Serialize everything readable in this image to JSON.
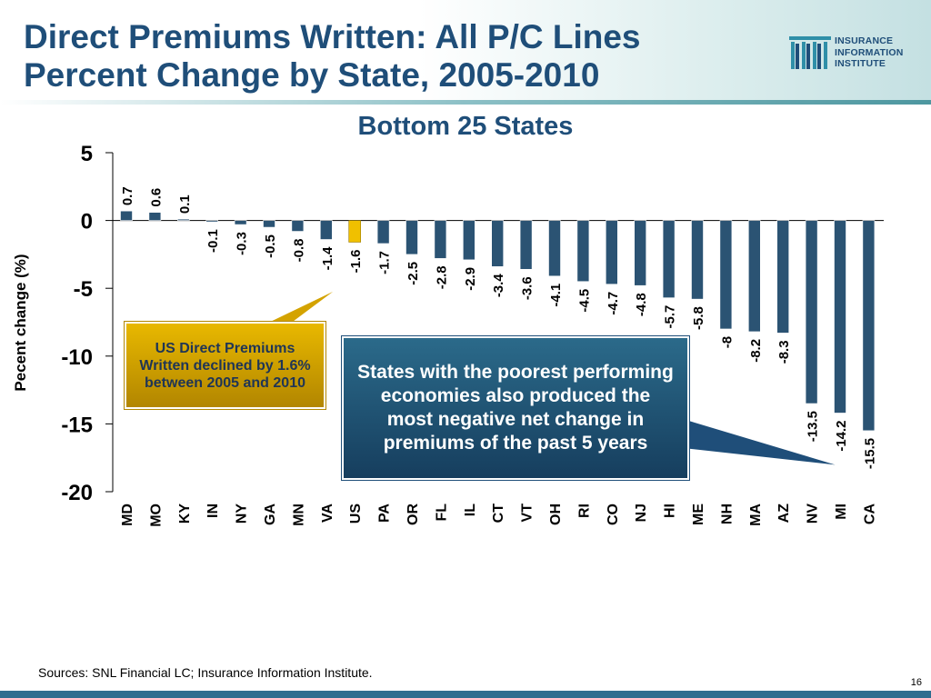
{
  "slide": {
    "title_line1": "Direct Premiums Written: All P/C Lines",
    "title_line2": "Percent Change by State, 2005-2010",
    "subtitle": "Bottom 25 States",
    "sources": "Sources:  SNL Financial LC; Insurance Information Institute.",
    "page_number": "16"
  },
  "logo": {
    "line1": "INSURANCE",
    "line2": "INFORMATION",
    "line3": "INSTITUTE"
  },
  "callouts": {
    "us_note": "US Direct Premiums Written declined by 1.6% between 2005 and 2010",
    "states_note": "States with the poorest performing economies also produced the most negative net change in premiums of the past 5 years"
  },
  "colors": {
    "title": "#1f4e79",
    "bar": "#2b5373",
    "highlight_bar": "#f0c000",
    "gold_callout": "#d4a300",
    "blue_callout": "#1f4e79"
  },
  "chart_data": {
    "type": "bar",
    "title": "Bottom 25 States",
    "xlabel": "",
    "ylabel": "Pecent change (%)",
    "ylim": [
      -20,
      5
    ],
    "yticks": [
      5,
      0,
      -5,
      -10,
      -15,
      -20
    ],
    "grid": false,
    "highlight": "US",
    "categories": [
      "MD",
      "MO",
      "KY",
      "IN",
      "NY",
      "GA",
      "MN",
      "VA",
      "US",
      "PA",
      "OR",
      "FL",
      "IL",
      "CT",
      "VT",
      "OH",
      "RI",
      "CO",
      "NJ",
      "HI",
      "ME",
      "NH",
      "MA",
      "AZ",
      "NV",
      "MI",
      "CA"
    ],
    "values": [
      0.7,
      0.6,
      0.1,
      -0.1,
      -0.3,
      -0.5,
      -0.8,
      -1.4,
      -1.6,
      -1.7,
      -2.5,
      -2.8,
      -2.9,
      -3.4,
      -3.6,
      -4.1,
      -4.5,
      -4.7,
      -4.8,
      -5.7,
      -5.8,
      -8,
      -8.2,
      -8.3,
      -13.5,
      -14.2,
      -15.5
    ]
  }
}
